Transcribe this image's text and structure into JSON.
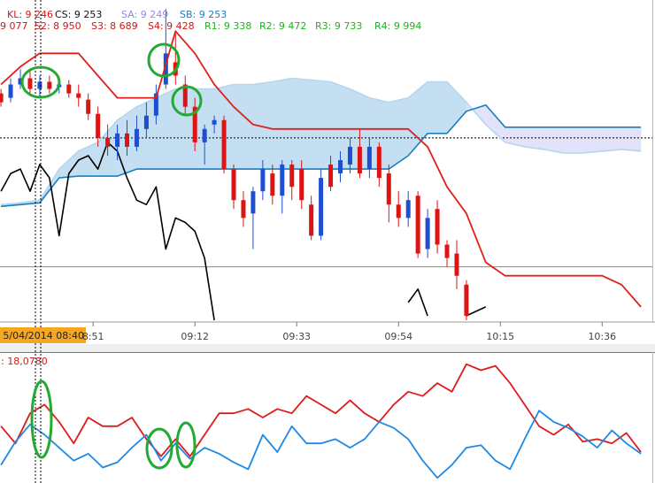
{
  "chart_data": [
    {
      "type": "candlestick",
      "x": [
        -8,
        -6,
        -4,
        -2,
        0,
        2,
        4,
        6,
        8,
        10,
        12,
        14,
        16,
        18,
        20,
        22,
        24,
        26,
        28,
        30,
        32,
        34,
        36,
        38,
        40,
        42,
        44,
        46,
        48,
        50,
        52,
        54,
        56,
        58,
        60,
        62,
        64,
        66,
        68,
        70,
        72,
        74,
        76,
        78,
        80,
        82,
        84,
        86,
        88
      ],
      "open": [
        9255,
        9250,
        9265,
        9272,
        9260,
        9268,
        9262,
        9265,
        9255,
        9248,
        9232,
        9205,
        9195,
        9210,
        9195,
        9215,
        9230,
        9265,
        9290,
        9265,
        9240,
        9200,
        9220,
        9225,
        9170,
        9135,
        9120,
        9145,
        9165,
        9140,
        9175,
        9170,
        9130,
        9095,
        9175,
        9165,
        9175,
        9195,
        9170,
        9195,
        9165,
        9130,
        9115,
        9140,
        9080,
        9125,
        9085,
        9075,
        9040
      ],
      "high": [
        9260,
        9272,
        9282,
        9280,
        9275,
        9275,
        9270,
        9270,
        9265,
        9255,
        9240,
        9220,
        9220,
        9225,
        9230,
        9245,
        9265,
        9350,
        9325,
        9275,
        9250,
        9220,
        9230,
        9230,
        9175,
        9145,
        9150,
        9180,
        9175,
        9180,
        9180,
        9180,
        9140,
        9170,
        9185,
        9190,
        9205,
        9215,
        9205,
        9200,
        9175,
        9145,
        9145,
        9145,
        9125,
        9135,
        9090,
        9090,
        9045
      ],
      "low": [
        9240,
        9245,
        9260,
        9255,
        9252,
        9255,
        9255,
        9250,
        9240,
        9225,
        9195,
        9185,
        9180,
        9185,
        9190,
        9205,
        9220,
        9260,
        9265,
        9230,
        9190,
        9175,
        9210,
        9165,
        9125,
        9105,
        9080,
        9135,
        9130,
        9120,
        9135,
        9125,
        9090,
        9090,
        9145,
        9155,
        9165,
        9160,
        9160,
        9150,
        9110,
        9105,
        9105,
        9070,
        9070,
        9075,
        9060,
        9035,
        9000
      ],
      "close": [
        9245,
        9265,
        9272,
        9260,
        9268,
        9260,
        9265,
        9255,
        9250,
        9232,
        9205,
        9195,
        9210,
        9195,
        9215,
        9230,
        9255,
        9300,
        9275,
        9240,
        9200,
        9215,
        9225,
        9170,
        9135,
        9115,
        9145,
        9170,
        9140,
        9175,
        9150,
        9135,
        9095,
        9160,
        9150,
        9180,
        9195,
        9165,
        9195,
        9160,
        9130,
        9115,
        9135,
        9075,
        9115,
        9085,
        9070,
        9050,
        9005
      ],
      "up_color": "#1f4fd1",
      "down_color": "#dd1414",
      "xlim": [
        -8.2,
        126.9
      ],
      "xticks": [
        {
          "value": 11,
          "label": "8:51"
        },
        {
          "value": 32,
          "label": "09:12"
        },
        {
          "value": 53,
          "label": "09:33"
        },
        {
          "value": 74,
          "label": "09:54"
        },
        {
          "value": 95,
          "label": "10:15"
        },
        {
          "value": 116,
          "label": "10:36"
        }
      ],
      "ylim": [
        9000,
        9360
      ],
      "cursor_label": "5/04/2014 08:40",
      "indicators": [
        {
          "text": "KL: 9 246",
          "color": "#d01818"
        },
        {
          "text": "CS: 9 253",
          "color": "#111111"
        },
        {
          "text": "SA: 9 249",
          "color": "#8c8ce0"
        },
        {
          "text": "SB: 9 253",
          "color": "#1a7fbf"
        }
      ],
      "levels": [
        {
          "text": "9 077",
          "color": "#d01818"
        },
        {
          "text": "S2: 8 950",
          "color": "#d01818"
        },
        {
          "text": "S3: 8 689",
          "color": "#d01818"
        },
        {
          "text": "S4: 9 428",
          "color": "#d01818"
        },
        {
          "text": "R1: 9 338",
          "color": "#22b022"
        },
        {
          "text": "R2: 9 472",
          "color": "#22b022"
        },
        {
          "text": "R3: 9 733",
          "color": "#22b022"
        },
        {
          "text": "R4: 9 994",
          "color": "#22b022"
        }
      ],
      "cloud_up_color": "#c4dff1",
      "cloud_down_color": "#e2e2fb",
      "series": [
        {
          "color": "#e0201b",
          "x": [
            -8,
            -4,
            0,
            4,
            8,
            12,
            16,
            20,
            24,
            28,
            32,
            36,
            40,
            44,
            48,
            52,
            56,
            60,
            64,
            68,
            72,
            76,
            80,
            84,
            88,
            92,
            96,
            100,
            104,
            108,
            112,
            116,
            120,
            124
          ],
          "values": [
            9265,
            9285,
            9300,
            9300,
            9300,
            9275,
            9250,
            9250,
            9250,
            9325,
            9300,
            9265,
            9240,
            9220,
            9215,
            9215,
            9215,
            9215,
            9215,
            9215,
            9215,
            9215,
            9195,
            9150,
            9120,
            9065,
            9050,
            9050,
            9050,
            9050,
            9050,
            9050,
            9040,
            9015
          ]
        },
        {
          "color": "#b5d6ee",
          "x": [
            -8,
            -4,
            0,
            4,
            8,
            12,
            16,
            20,
            24,
            28,
            32,
            36,
            40,
            44,
            48,
            52,
            56,
            60,
            64,
            68,
            72,
            76,
            80,
            84,
            88,
            92,
            96,
            100,
            104,
            108,
            112,
            116,
            120,
            124
          ],
          "values": [
            9130,
            9132,
            9135,
            9170,
            9190,
            9200,
            9225,
            9240,
            9250,
            9260,
            9260,
            9260,
            9265,
            9265,
            9268,
            9272,
            9270,
            9268,
            9260,
            9250,
            9245,
            9250,
            9268,
            9268,
            9245,
            9220,
            9200,
            9195,
            9192,
            9188,
            9188,
            9190,
            9192,
            9190
          ]
        },
        {
          "color": "#1a7fbf",
          "x": [
            -8,
            -4,
            0,
            4,
            8,
            12,
            16,
            20,
            24,
            28,
            32,
            36,
            40,
            44,
            48,
            52,
            56,
            60,
            64,
            68,
            72,
            76,
            80,
            84,
            88,
            92,
            96,
            100,
            104,
            108,
            112,
            116,
            120,
            124
          ],
          "values": [
            9128,
            9130,
            9132,
            9160,
            9162,
            9162,
            9162,
            9170,
            9170,
            9170,
            9170,
            9170,
            9170,
            9170,
            9170,
            9170,
            9170,
            9170,
            9170,
            9170,
            9170,
            9185,
            9210,
            9210,
            9235,
            9242,
            9217,
            9217,
            9217,
            9217,
            9217,
            9217,
            9217,
            9217
          ]
        },
        {
          "color": "#000000",
          "x": [
            -8,
            -6,
            -4,
            -2,
            0,
            2,
            4,
            6,
            8,
            10,
            12,
            14,
            16,
            18,
            20,
            22,
            24,
            26,
            28,
            30,
            32,
            34,
            36,
            56,
            76,
            78,
            80,
            84,
            88,
            90,
            92
          ],
          "values": [
            9145,
            9165,
            9170,
            9145,
            9175,
            9160,
            9095,
            9165,
            9180,
            9185,
            9170,
            9200,
            9190,
            9160,
            9135,
            9130,
            9150,
            9080,
            9115,
            9110,
            9100,
            9070,
            9000,
            null,
            9020,
            9035,
            9005,
            null,
            9005,
            9010,
            9015
          ]
        }
      ],
      "hlines": [
        {
          "value": 9205,
          "color": "#000000",
          "dashed": true
        },
        {
          "value": 9060,
          "color": "#8a8a8a",
          "dashed": false
        }
      ]
    },
    {
      "type": "line",
      "title": ": 18,0780",
      "x": [
        -8,
        -5,
        -2,
        1,
        4,
        7,
        10,
        13,
        16,
        19,
        22,
        25,
        28,
        31,
        34,
        37,
        40,
        43,
        46,
        49,
        52,
        55,
        58,
        61,
        64,
        67,
        70,
        73,
        76,
        79,
        82,
        85,
        88,
        91,
        94,
        97,
        100,
        103,
        106,
        109,
        112,
        115,
        118,
        121,
        124
      ],
      "xlim": [
        -8.2,
        126.9
      ],
      "ylim": [
        0,
        150
      ],
      "series": [
        {
          "color": "#e01a1a",
          "values": [
            66,
            46,
            81,
            91,
            71,
            46,
            76,
            66,
            66,
            76,
            51,
            31,
            51,
            31,
            56,
            81,
            81,
            86,
            76,
            86,
            81,
            101,
            91,
            81,
            96,
            81,
            71,
            91,
            106,
            101,
            116,
            106,
            138,
            131,
            136,
            116,
            91,
            66,
            56,
            68,
            48,
            51,
            46,
            58,
            36
          ]
        },
        {
          "color": "#1e88e5",
          "values": [
            21,
            48,
            68,
            56,
            41,
            26,
            34,
            18,
            24,
            41,
            56,
            26,
            46,
            28,
            41,
            34,
            24,
            16,
            56,
            36,
            66,
            46,
            46,
            51,
            41,
            51,
            71,
            64,
            51,
            26,
            6,
            21,
            41,
            44,
            26,
            16,
            51,
            84,
            71,
            64,
            54,
            41,
            61,
            46,
            34
          ]
        }
      ]
    }
  ]
}
